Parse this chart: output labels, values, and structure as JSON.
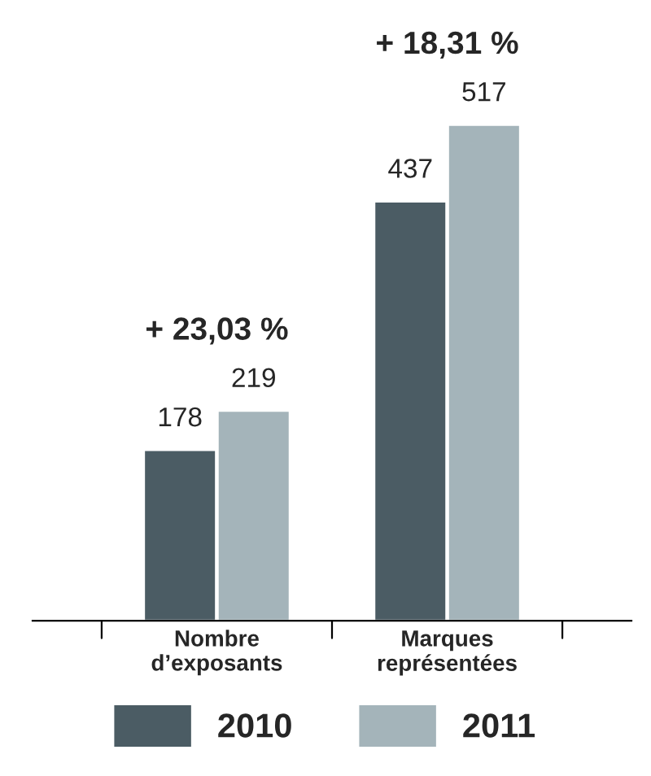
{
  "chart_data": {
    "type": "bar",
    "categories": [
      "Nombre\nd’exposants",
      "Marques\nreprésentées"
    ],
    "series": [
      {
        "name": "2010",
        "color": "#4b5c64",
        "values": [
          178,
          437
        ]
      },
      {
        "name": "2011",
        "color": "#a4b4ba",
        "values": [
          219,
          517
        ]
      }
    ],
    "data_labels": true,
    "annotations": [
      "+ 23,03 %",
      "+ 18,31 %"
    ],
    "legend": "bottom",
    "grid": false
  }
}
